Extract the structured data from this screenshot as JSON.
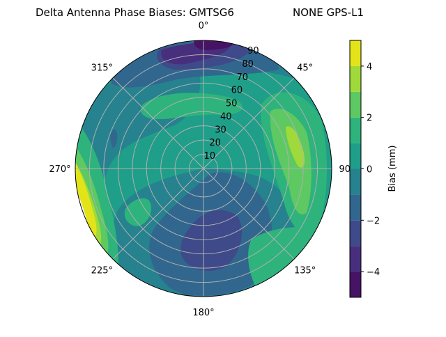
{
  "chart_data": {
    "type": "contour",
    "projection": "polar",
    "title_left": "Delta Antenna Phase Biases: GMTSG6",
    "title_right": "NONE GPS-L1",
    "theta_direction": "clockwise",
    "theta_zero": "top",
    "theta_ticks": [
      "0°",
      "45°",
      "90°",
      "135°",
      "180°",
      "225°",
      "270°",
      "315°"
    ],
    "radial_ticks": [
      "10",
      "20",
      "30",
      "40",
      "50",
      "60",
      "70",
      "80",
      "90"
    ],
    "rlim": [
      0,
      90
    ],
    "grid": true,
    "levels": [
      -5,
      -4,
      -3,
      -2,
      -1,
      0,
      1,
      2,
      3,
      4,
      5
    ],
    "colormap": "viridis",
    "level_colors": [
      "#471365",
      "#472f7d",
      "#3e4a89",
      "#31678e",
      "#26828e",
      "#1f9e89",
      "#2eb37c",
      "#5ec962",
      "#9fda3a",
      "#e2e419"
    ],
    "colorbar": {
      "label": "Bias (mm)",
      "ticks": [
        "−4",
        "−2",
        "0",
        "2",
        "4"
      ],
      "tick_values": [
        -4,
        -2,
        0,
        2,
        4
      ],
      "range": [
        -5,
        5
      ]
    },
    "regions": [
      {
        "level": [
          -5,
          -4
        ],
        "location": "near 0°, elevation 80-90"
      },
      {
        "level": [
          -4,
          -3
        ],
        "location": "350°-20°, 70-90"
      },
      {
        "level": [
          -3,
          -2
        ],
        "location": "330°-30°, 60-90; 150°-175°, 40-70"
      },
      {
        "level": [
          2,
          3
        ],
        "location": "60°-75°, 40-75; 270°-250°, 80-90"
      },
      {
        "level": [
          3,
          4
        ],
        "location": "65°-85°, 60-75; 255°-240°, 85-90"
      },
      {
        "level": [
          4,
          5
        ],
        "location": "265°-245°, 85-90"
      }
    ]
  }
}
